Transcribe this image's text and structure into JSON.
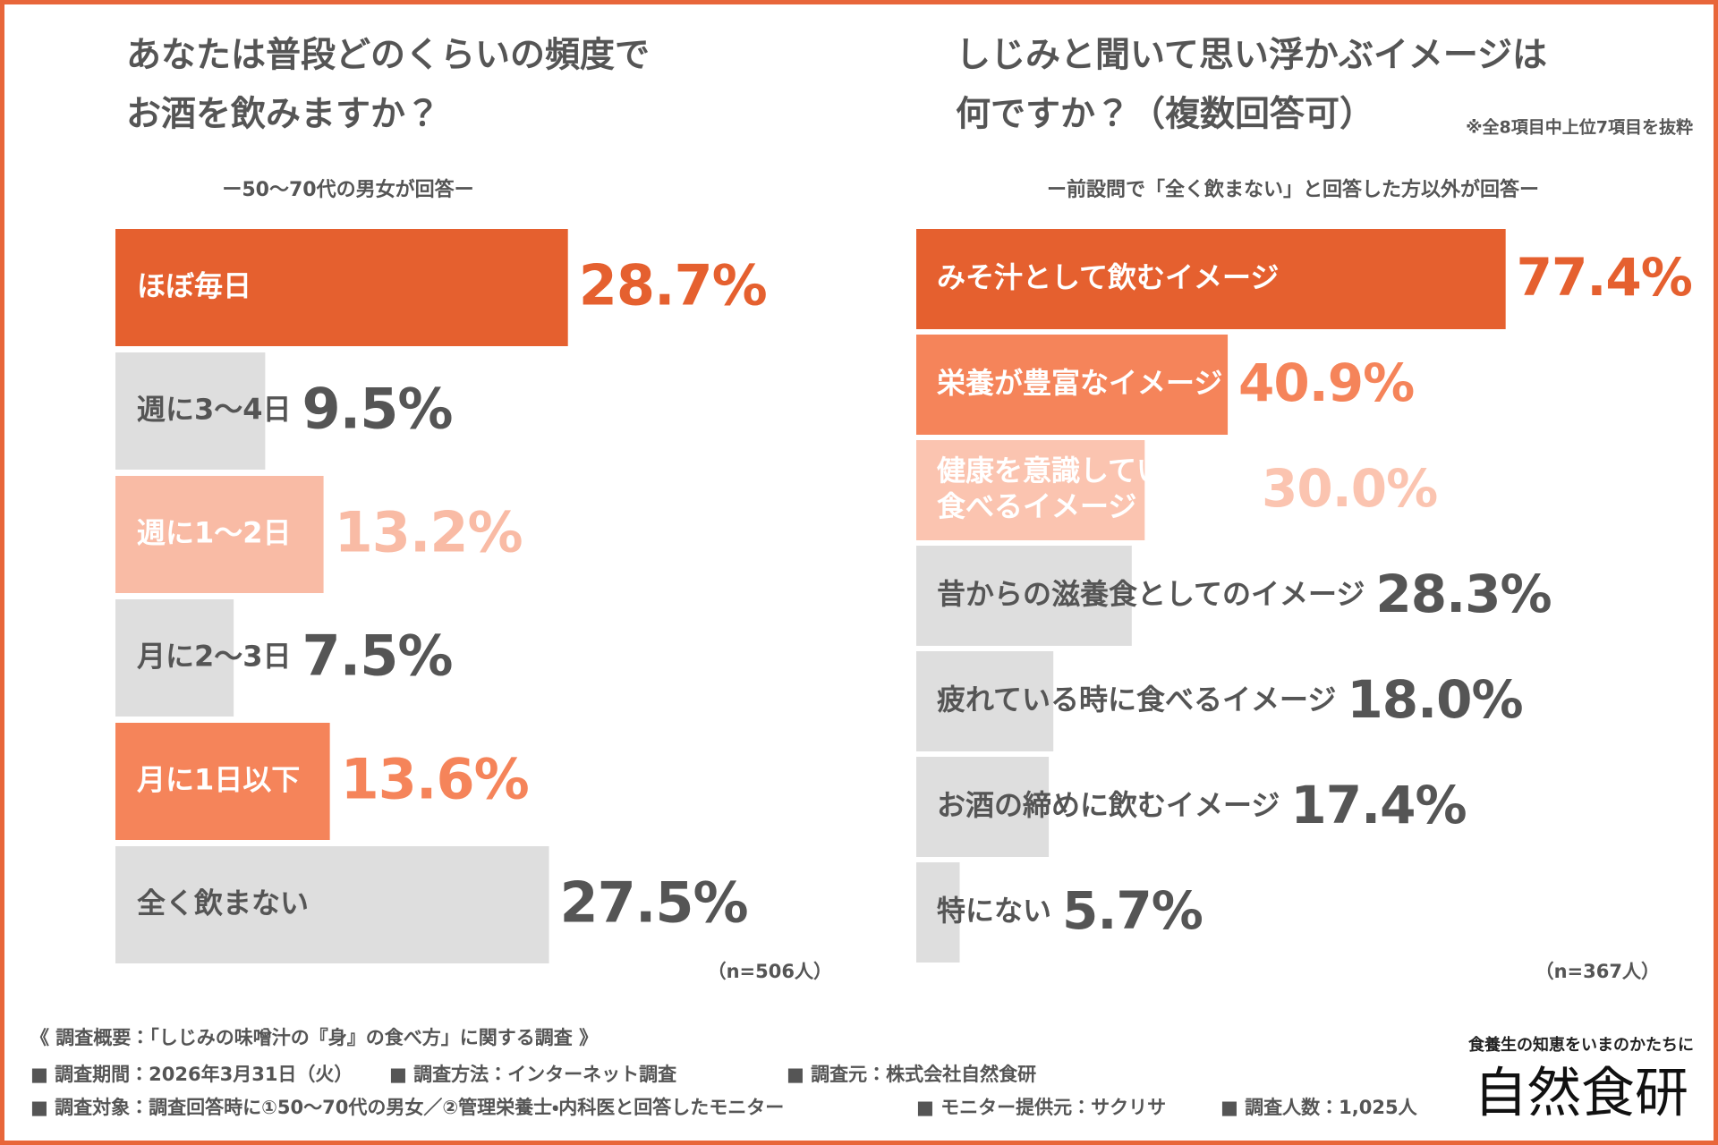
{
  "chart_data": [
    {
      "type": "bar",
      "title": [
        "あなたは普段どのくらいの頻度で",
        "お酒を飲みますか？"
      ],
      "subtitle": "ー50〜70代の男女が回答ー",
      "categories": [
        "ほぼ毎日",
        "週に3〜4日",
        "週に1〜2日",
        "月に2〜3日",
        "月に1日以下",
        "全く飲まない"
      ],
      "values": [
        28.7,
        9.5,
        13.2,
        7.5,
        13.6,
        27.5
      ],
      "value_labels": [
        "28.7%",
        "9.5%",
        "13.2%",
        "7.5%",
        "13.6%",
        "27.5%"
      ],
      "colors": [
        "#e5602f",
        "#dedede",
        "#f9bba5",
        "#dedede",
        "#f5845a",
        "#dedede"
      ],
      "text_colors": [
        "#ffffff",
        "#555555",
        "#ffffff",
        "#555555",
        "#ffffff",
        "#555555"
      ],
      "value_colors": [
        "#e5602f",
        "#555555",
        "#f9bba5",
        "#555555",
        "#f5845a",
        "#555555"
      ],
      "sample_size": "（n=506人）"
    },
    {
      "type": "bar",
      "title": [
        "しじみと聞いて思い浮かぶイメージは",
        "何ですか？（複数回答可）"
      ],
      "note": "※全8項目中上位7項目を抜粋",
      "subtitle": "ー前設問で「全く飲まない」と回答した方以外が回答ー",
      "categories": [
        "みそ汁として飲むイメージ",
        "栄養が豊富なイメージ",
        "健康を意識している人が\n食べるイメージ",
        "昔からの滋養食としてのイメージ",
        "疲れている時に食べるイメージ",
        "お酒の締めに飲むイメージ",
        "特にない"
      ],
      "values": [
        77.4,
        40.9,
        30.0,
        28.3,
        18.0,
        17.4,
        5.7
      ],
      "value_labels": [
        "77.4%",
        "40.9%",
        "30.0%",
        "28.3%",
        "18.0%",
        "17.4%",
        "5.7%"
      ],
      "colors": [
        "#e5602f",
        "#f5845a",
        "#fbc4b0",
        "#dedede",
        "#dedede",
        "#dedede",
        "#dedede"
      ],
      "text_colors": [
        "#ffffff",
        "#ffffff",
        "#ffffff",
        "#555555",
        "#555555",
        "#555555",
        "#555555"
      ],
      "value_colors": [
        "#e5602f",
        "#f5845a",
        "#fbc4b0",
        "#555555",
        "#555555",
        "#555555",
        "#555555"
      ],
      "sample_size": "（n=367人）"
    }
  ],
  "footer": {
    "heading": "《 調査概要：「しじみの味噌汁の『身』の食べ方」に関する調査 》",
    "lines": [
      [
        "■ 調査期間：2026年3月31日（火）",
        "■ 調査方法：インターネット調査",
        "■ 調査元：株式会社自然食研"
      ],
      [
        "■ 調査対象：調査回答時に①50〜70代の男女／②管理栄養士・内科医と回答したモニター",
        "■ モニター提供元：サクリサ",
        "■ 調査人数：1,025人"
      ]
    ],
    "brand_tagline": "食養生の知恵をいまのかたちに",
    "brand_name": "自然食研"
  }
}
